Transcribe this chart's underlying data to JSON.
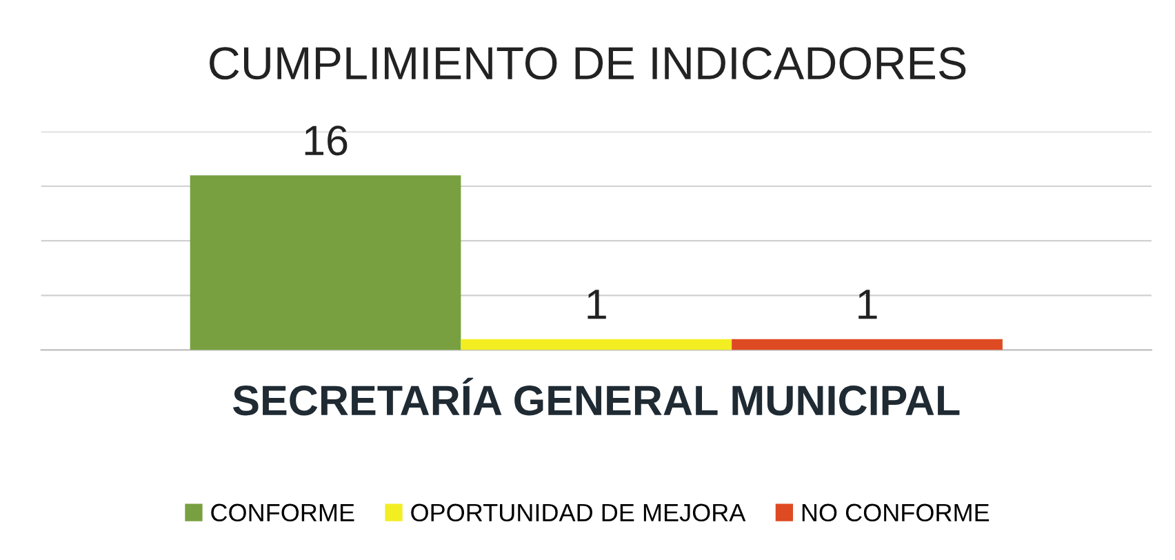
{
  "chart_data": {
    "type": "bar",
    "title": "CUMPLIMIENTO DE INDICADORES",
    "xlabel": "SECRETARÍA GENERAL MUNICIPAL",
    "categories": [
      "CONFORME",
      "OPORTUNIDAD DE MEJORA",
      "NO CONFORME"
    ],
    "series": [
      {
        "colors": [
          "#78a040",
          "#f2ee22",
          "#de4a22"
        ],
        "values": [
          16,
          1,
          1
        ]
      }
    ],
    "ylim": [
      0,
      20
    ],
    "tick_labels": false,
    "grid": "y",
    "data_labels": true
  }
}
